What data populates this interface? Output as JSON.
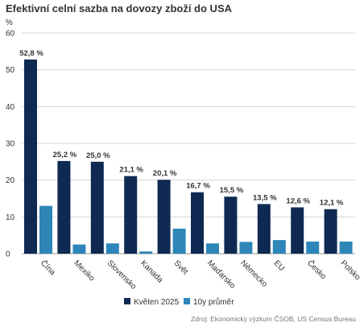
{
  "chart_data": {
    "type": "bar",
    "title": "Efektivní celní sazba na dovozy zboží do USA",
    "ylabel": "%",
    "ylim": [
      0,
      60
    ],
    "yticks": [
      0,
      10,
      20,
      30,
      40,
      50,
      60
    ],
    "categories": [
      "Čína",
      "Mexiko",
      "Slovensko",
      "Kanada",
      "Svět",
      "Maďarsko",
      "Německo",
      "EU",
      "Česko",
      "Polsko"
    ],
    "series": [
      {
        "name": "Květen 2025",
        "color": "#0f2a52",
        "values": [
          52.8,
          25.2,
          25.0,
          21.1,
          20.1,
          16.7,
          15.5,
          13.5,
          12.6,
          12.1
        ],
        "labels": [
          "52,8 %",
          "25,2 %",
          "25,0 %",
          "21,1 %",
          "20,1 %",
          "16,7 %",
          "15,5 %",
          "13,5 %",
          "12,6 %",
          "12,1 %"
        ]
      },
      {
        "name": "10y průměr",
        "color": "#2e86b8",
        "values": [
          13.0,
          2.5,
          2.8,
          0.6,
          6.8,
          2.8,
          3.2,
          3.7,
          3.3,
          3.3
        ]
      }
    ],
    "grid": "horizontal",
    "legend_position": "bottom-center",
    "source": "Zdroj: Ekonomický výzkum ČSOB, US Census Bureau"
  }
}
